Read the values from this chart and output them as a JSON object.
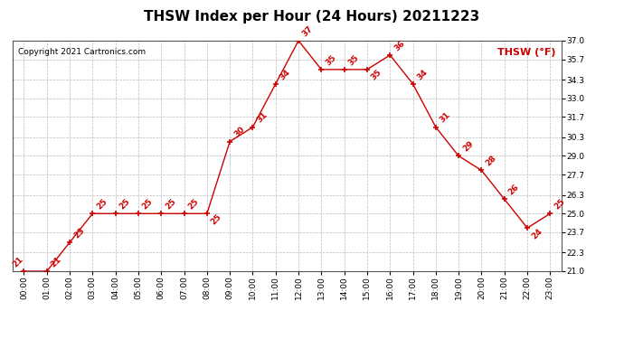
{
  "title": "THSW Index per Hour (24 Hours) 20211223",
  "copyright": "Copyright 2021 Cartronics.com",
  "legend_label": "THSW (°F)",
  "x_labels": [
    "00:00",
    "01:00",
    "02:00",
    "03:00",
    "04:00",
    "05:00",
    "06:00",
    "07:00",
    "08:00",
    "09:00",
    "10:00",
    "11:00",
    "12:00",
    "13:00",
    "14:00",
    "15:00",
    "16:00",
    "17:00",
    "18:00",
    "19:00",
    "20:00",
    "21:00",
    "22:00",
    "23:00"
  ],
  "values": [
    21,
    21,
    23,
    25,
    25,
    25,
    25,
    25,
    25,
    30,
    31,
    34,
    37,
    35,
    35,
    35,
    36,
    34,
    31,
    29,
    28,
    26,
    24,
    25
  ],
  "y_ticks": [
    21.0,
    22.3,
    23.7,
    25.0,
    26.3,
    27.7,
    29.0,
    30.3,
    31.7,
    33.0,
    34.3,
    35.7,
    37.0
  ],
  "ylim": [
    21.0,
    37.0
  ],
  "line_color": "#cc0000",
  "background_color": "#ffffff",
  "grid_color": "#bbbbbb",
  "title_fontsize": 11,
  "tick_fontsize": 6.5,
  "annotation_fontsize": 6.5,
  "copyright_fontsize": 6.5,
  "legend_fontsize": 8
}
